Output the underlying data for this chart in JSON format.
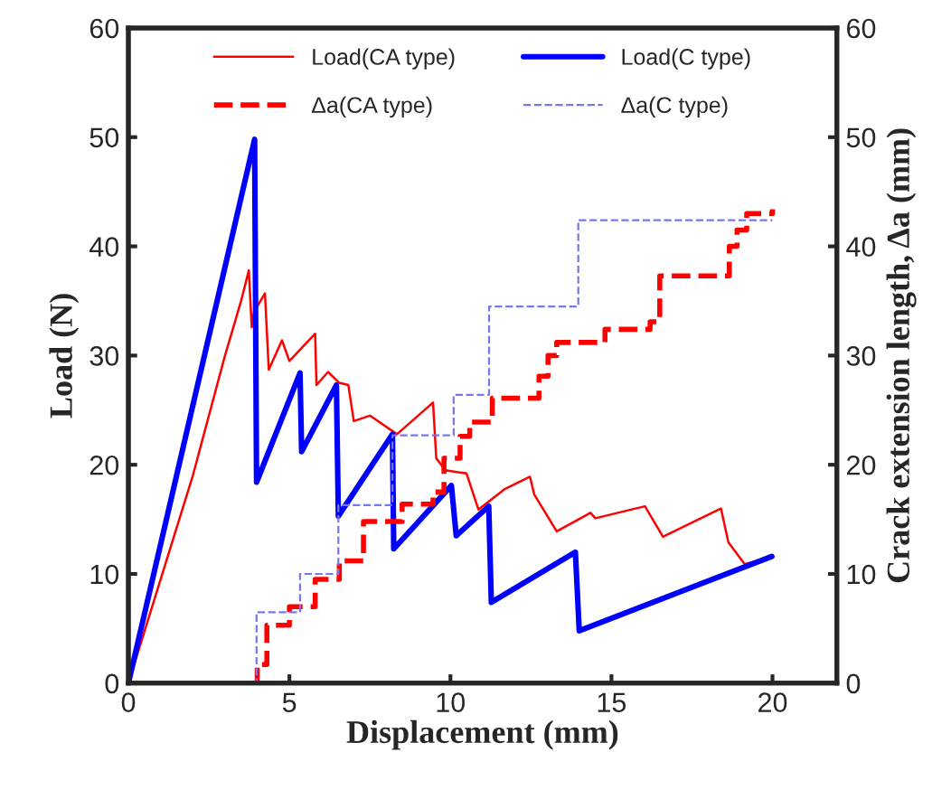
{
  "chart_data": {
    "type": "line",
    "xlabel": "Displacement (mm)",
    "ylabel": "Load (N)",
    "y2label": "Crack extension length, Δa (mm)",
    "xlim": [
      0,
      22
    ],
    "xticks": [
      0,
      5,
      10,
      15,
      20
    ],
    "ylim": [
      0,
      60
    ],
    "yticks": [
      0,
      10,
      20,
      30,
      40,
      50,
      60
    ],
    "y2lim": [
      0,
      60
    ],
    "y2ticks": [
      0,
      10,
      20,
      30,
      40,
      50,
      60
    ],
    "legend": "top",
    "grid": false,
    "series": [
      {
        "name": "Load(CA type)",
        "color": "#ff0000",
        "line_style": "solid",
        "x": [
          0,
          1,
          2,
          3,
          3.3,
          3.5,
          3.74,
          3.83,
          3.9,
          4.24,
          4.36,
          4.77,
          5.0,
          5.8,
          5.84,
          6.2,
          6.55,
          6.83,
          7.0,
          7.5,
          8.34,
          9.46,
          9.56,
          9.84,
          10.5,
          10.87,
          11.7,
          12.47,
          12.6,
          13.3,
          14.35,
          14.5,
          16.04,
          16.6,
          18.4,
          18.63,
          19.14,
          19.98
        ],
        "values": [
          0,
          9.5,
          19,
          30,
          33,
          35,
          37.8,
          32.6,
          34,
          35.7,
          28.7,
          31.4,
          29.5,
          32,
          27.3,
          28.5,
          27.5,
          27.3,
          24,
          24.5,
          22.8,
          25.7,
          20.6,
          19.5,
          19.2,
          15.9,
          17.8,
          18.9,
          17.3,
          13.9,
          15.6,
          15.1,
          16.2,
          13.4,
          16,
          12.9,
          10.9,
          11.6
        ]
      },
      {
        "name": "Load(C type)",
        "color": "#0000ff",
        "line_style": "solid",
        "x": [
          0,
          3.92,
          3.98,
          5.33,
          5.38,
          6.46,
          6.52,
          8.2,
          8.24,
          10.03,
          10.18,
          11.19,
          11.27,
          13.88,
          14.0,
          19.98
        ],
        "values": [
          0,
          49.8,
          18.4,
          28.4,
          21.2,
          27.3,
          15.3,
          22.8,
          12.3,
          18.1,
          13.5,
          16.2,
          7.4,
          12,
          4.8,
          11.6
        ]
      },
      {
        "name": "Δa(CA type)",
        "color": "#ff0000",
        "type": "step",
        "axis": "y2",
        "line_style": "dashed",
        "x": [
          3.9,
          4.0,
          4.3,
          5.0,
          5.8,
          6.55,
          7.3,
          8.5,
          9.46,
          9.8,
          10.3,
          10.6,
          11.3,
          12.75,
          13.03,
          13.3,
          14.8,
          16.2,
          16.5,
          18.66,
          18.9,
          19.2,
          20
        ],
        "values": [
          0,
          1.7,
          5.3,
          7,
          9.5,
          11.2,
          14.8,
          16.4,
          17.5,
          20.6,
          22.6,
          23.9,
          26.1,
          28.1,
          30,
          31.2,
          32.4,
          33.1,
          37.3,
          40,
          41.5,
          43,
          43.4
        ]
      },
      {
        "name": "Δa(C type)",
        "color": "#7777ee",
        "type": "step",
        "axis": "y2",
        "line_style": "dashed",
        "x": [
          3.9,
          3.98,
          5.33,
          6.52,
          8.2,
          10.1,
          11.2,
          13.97,
          20
        ],
        "values": [
          0,
          6.5,
          10,
          16.3,
          22.7,
          26.4,
          34.5,
          42.4,
          42.4
        ]
      }
    ]
  }
}
